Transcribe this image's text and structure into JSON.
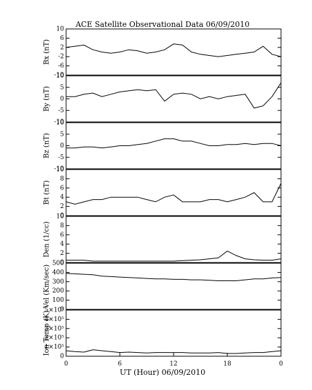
{
  "chart_data": [
    {
      "type": "line",
      "title": "ACE Satellite Observational Data   06/09/2010",
      "ylabel": "Bx (nT)",
      "x": [
        0,
        1,
        2,
        3,
        4,
        5,
        6,
        7,
        8,
        9,
        10,
        11,
        12,
        13,
        14,
        15,
        16,
        17,
        18,
        19,
        20,
        21,
        22,
        23,
        24
      ],
      "series": [
        {
          "color": "#000000",
          "values": [
            2,
            2.5,
            3,
            1,
            0,
            -0.5,
            0,
            1,
            0.5,
            -0.5,
            0,
            1,
            3.5,
            3,
            0,
            -1,
            -1.5,
            -2,
            -1.5,
            -1,
            -0.5,
            0,
            2.5,
            -1,
            -2
          ]
        }
      ],
      "xlim": [
        0,
        24
      ],
      "ylim": [
        -10,
        10
      ],
      "yticks": [
        10,
        6,
        2,
        -2,
        -6,
        -10
      ]
    },
    {
      "type": "line",
      "ylabel": "By (nT)",
      "x": [
        0,
        1,
        2,
        3,
        4,
        5,
        6,
        7,
        8,
        9,
        10,
        11,
        12,
        13,
        14,
        15,
        16,
        17,
        18,
        19,
        20,
        21,
        22,
        23,
        24
      ],
      "series": [
        {
          "color": "#000000",
          "values": [
            1,
            1,
            2,
            2.5,
            1,
            2,
            3,
            3.5,
            4,
            3.5,
            4,
            -1,
            2,
            2.5,
            2,
            0,
            1,
            0,
            1,
            1.5,
            2,
            -4,
            -3,
            1,
            7
          ]
        }
      ],
      "xlim": [
        0,
        24
      ],
      "ylim": [
        -10,
        10
      ],
      "yticks": [
        10,
        5,
        0,
        -5,
        -10
      ]
    },
    {
      "type": "line",
      "ylabel": "Bz (nT)",
      "x": [
        0,
        1,
        2,
        3,
        4,
        5,
        6,
        7,
        8,
        9,
        10,
        11,
        12,
        13,
        14,
        15,
        16,
        17,
        18,
        19,
        20,
        21,
        22,
        23,
        24
      ],
      "series": [
        {
          "color": "#000000",
          "values": [
            -1,
            -1,
            -0.5,
            -0.5,
            -1,
            -0.5,
            0,
            0,
            0.5,
            1,
            2,
            3,
            3,
            2,
            2,
            1,
            0,
            0,
            0.5,
            0.5,
            1,
            0.5,
            1,
            1,
            0
          ]
        }
      ],
      "xlim": [
        0,
        24
      ],
      "ylim": [
        -10,
        10
      ],
      "yticks": [
        10,
        5,
        0,
        -5,
        -10
      ]
    },
    {
      "type": "line",
      "ylabel": "Bt (nT)",
      "x": [
        0,
        1,
        2,
        3,
        4,
        5,
        6,
        7,
        8,
        9,
        10,
        11,
        12,
        13,
        14,
        15,
        16,
        17,
        18,
        19,
        20,
        21,
        22,
        23,
        24
      ],
      "series": [
        {
          "color": "#000000",
          "values": [
            3,
            2.5,
            3,
            3.5,
            3.5,
            4,
            4,
            4,
            4,
            3.5,
            3,
            4,
            4.5,
            3,
            3,
            3,
            3.5,
            3.5,
            3,
            3.5,
            4,
            5,
            3,
            3,
            7
          ]
        }
      ],
      "xlim": [
        0,
        24
      ],
      "ylim": [
        0,
        10
      ],
      "yticks": [
        10,
        8,
        6,
        4,
        2,
        0
      ]
    },
    {
      "type": "line",
      "ylabel": "Den (1/cc)",
      "x": [
        0,
        1,
        2,
        3,
        4,
        5,
        6,
        7,
        8,
        9,
        10,
        11,
        12,
        13,
        14,
        15,
        16,
        17,
        18,
        19,
        20,
        21,
        22,
        23,
        24
      ],
      "series": [
        {
          "color": "#000000",
          "values": [
            0.5,
            0.5,
            0.5,
            0.3,
            0.3,
            0.3,
            0.3,
            0.3,
            0.3,
            0.3,
            0.3,
            0.3,
            0.3,
            0.4,
            0.5,
            0.6,
            0.8,
            1,
            2.5,
            1.5,
            0.8,
            0.6,
            0.5,
            0.5,
            0.8
          ]
        }
      ],
      "xlim": [
        0,
        24
      ],
      "ylim": [
        0,
        10
      ],
      "yticks": [
        10,
        8,
        6,
        4,
        2,
        0
      ]
    },
    {
      "type": "line",
      "ylabel": "Vel (Km/sec)",
      "x": [
        0,
        1,
        2,
        3,
        4,
        5,
        6,
        7,
        8,
        9,
        10,
        11,
        12,
        13,
        14,
        15,
        16,
        17,
        18,
        19,
        20,
        21,
        22,
        23,
        24
      ],
      "series": [
        {
          "color": "#000000",
          "values": [
            390,
            385,
            380,
            375,
            360,
            355,
            350,
            345,
            340,
            335,
            330,
            330,
            325,
            325,
            320,
            320,
            315,
            310,
            310,
            310,
            320,
            330,
            330,
            340,
            345
          ]
        }
      ],
      "xlim": [
        0,
        24
      ],
      "ylim": [
        0,
        500
      ],
      "yticks": [
        500,
        400,
        300,
        200,
        100,
        0
      ]
    },
    {
      "type": "line",
      "ylabel": "Ion Temp (K)",
      "xlabel": "UT (Hour)   06/09/2010",
      "x": [
        0,
        1,
        2,
        3,
        4,
        5,
        6,
        7,
        8,
        9,
        10,
        11,
        12,
        13,
        14,
        15,
        16,
        17,
        18,
        19,
        20,
        21,
        22,
        23,
        24
      ],
      "series": [
        {
          "color": "#000000",
          "values": [
            60000,
            50000,
            45000,
            70000,
            60000,
            50000,
            40000,
            45000,
            40000,
            35000,
            40000,
            40000,
            40000,
            40000,
            35000,
            35000,
            35000,
            40000,
            30000,
            30000,
            35000,
            40000,
            40000,
            50000,
            60000
          ]
        }
      ],
      "xlim": [
        0,
        24
      ],
      "ylim": [
        0,
        500000
      ],
      "yticks": [
        {
          "value": 500000,
          "label": "5×10⁵"
        },
        {
          "value": 400000,
          "label": "4×10⁵"
        },
        {
          "value": 300000,
          "label": "3×10⁵"
        },
        {
          "value": 200000,
          "label": "2×10⁵"
        },
        {
          "value": 100000,
          "label": "1×10⁵"
        },
        0
      ],
      "xticks": [
        0,
        6,
        12,
        18,
        {
          "value": 24,
          "label": "0"
        }
      ]
    }
  ]
}
